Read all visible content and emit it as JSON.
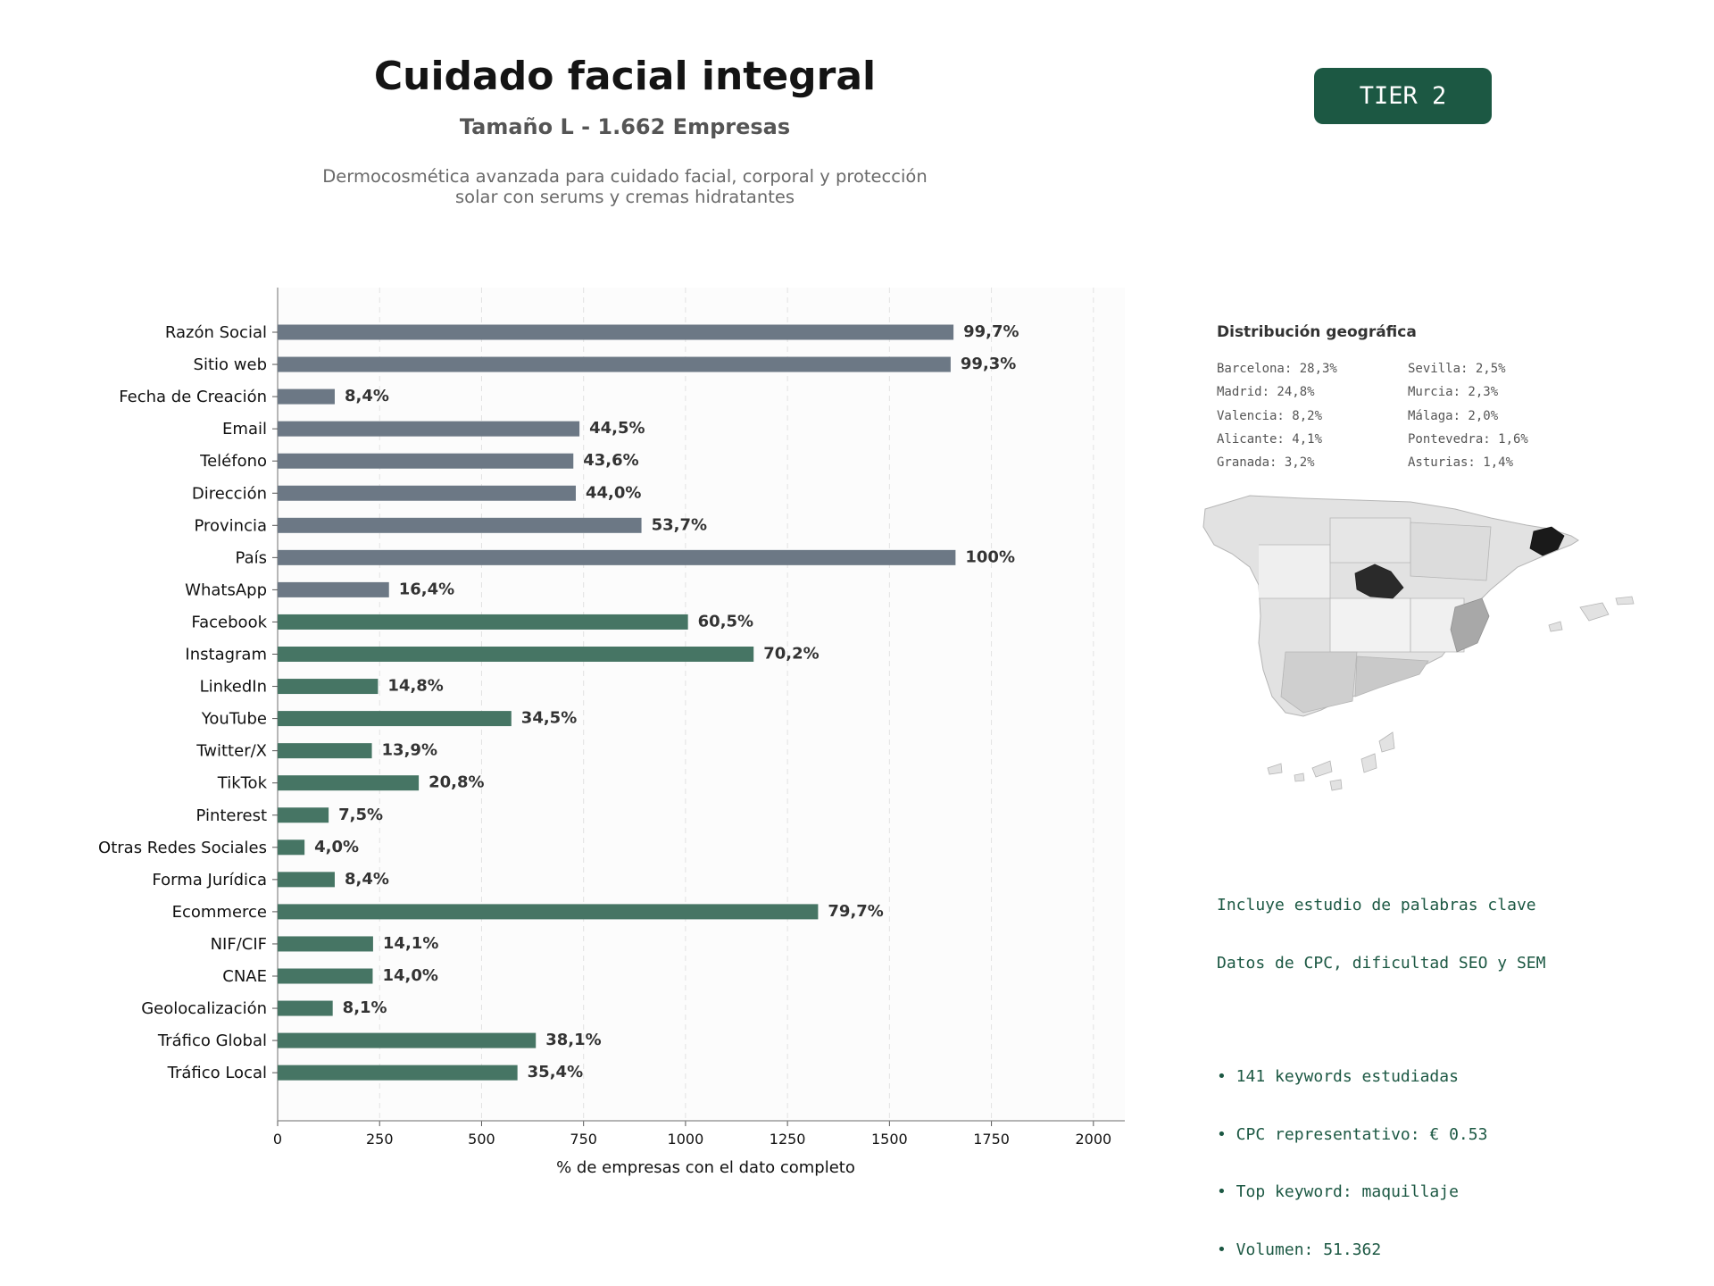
{
  "header": {
    "title": "Cuidado facial integral",
    "subtitle": "Tamaño L - 1.662 Empresas",
    "description_line1": "Dermocosmética avanzada para cuidado facial, corporal y protección",
    "description_line2": "solar con serums y cremas hidratantes",
    "tier_badge": "TIER 2"
  },
  "colors": {
    "contact_bar": "#6c7885",
    "digital_bar": "#467564",
    "brand": "#1c5843"
  },
  "chart_data": {
    "type": "bar",
    "orientation": "horizontal",
    "categories": [
      "Razón Social",
      "Sitio web",
      "Fecha de Creación",
      "Email",
      "Teléfono",
      "Dirección",
      "Provincia",
      "País",
      "WhatsApp",
      "Facebook",
      "Instagram",
      "LinkedIn",
      "YouTube",
      "Twitter/X",
      "TikTok",
      "Pinterest",
      "Otras Redes Sociales",
      "Forma Jurídica",
      "Ecommerce",
      "NIF/CIF",
      "CNAE",
      "Geolocalización",
      "Tráfico Global",
      "Tráfico Local"
    ],
    "values": [
      1657,
      1650,
      140,
      740,
      725,
      731,
      892,
      1662,
      273,
      1006,
      1167,
      246,
      573,
      231,
      346,
      125,
      66,
      140,
      1325,
      234,
      233,
      135,
      633,
      588
    ],
    "labels": [
      "99,7%",
      "99,3%",
      "8,4%",
      "44,5%",
      "43,6%",
      "44,0%",
      "53,7%",
      "100%",
      "16,4%",
      "60,5%",
      "70,2%",
      "14,8%",
      "34,5%",
      "13,9%",
      "20,8%",
      "7,5%",
      "4,0%",
      "8,4%",
      "79,7%",
      "14,1%",
      "14,0%",
      "8,1%",
      "38,1%",
      "35,4%"
    ],
    "groups": [
      "contact",
      "contact",
      "contact",
      "contact",
      "contact",
      "contact",
      "contact",
      "contact",
      "contact",
      "digital",
      "digital",
      "digital",
      "digital",
      "digital",
      "digital",
      "digital",
      "digital",
      "digital",
      "digital",
      "digital",
      "digital",
      "digital",
      "digital",
      "digital"
    ],
    "xlabel": "% de empresas con el dato completo",
    "xticks": [
      0,
      250,
      500,
      750,
      1000,
      1250,
      1500,
      1750,
      2000
    ],
    "xlim": [
      0,
      2077
    ],
    "grid": "vertical-dashed"
  },
  "geo": {
    "title": "Distribución geográfica",
    "col1": [
      "Barcelona: 28,3%",
      "Madrid: 24,8%",
      "Valencia: 8,2%",
      "Alicante: 4,1%",
      "Granada: 3,2%"
    ],
    "col2": [
      "Sevilla: 2,5%",
      "Murcia: 2,3%",
      "Málaga: 2,0%",
      "Pontevedra: 1,6%",
      "Asturias: 1,4%"
    ]
  },
  "keywords": {
    "line1": "Incluye estudio de palabras clave",
    "line2": "Datos de CPC, dificultad SEO y SEM",
    "bullets": [
      "• 141 keywords estudiadas",
      "• CPC representativo: € 0.53",
      "• Top keyword: maquillaje",
      "• Volumen: 51.362"
    ]
  }
}
